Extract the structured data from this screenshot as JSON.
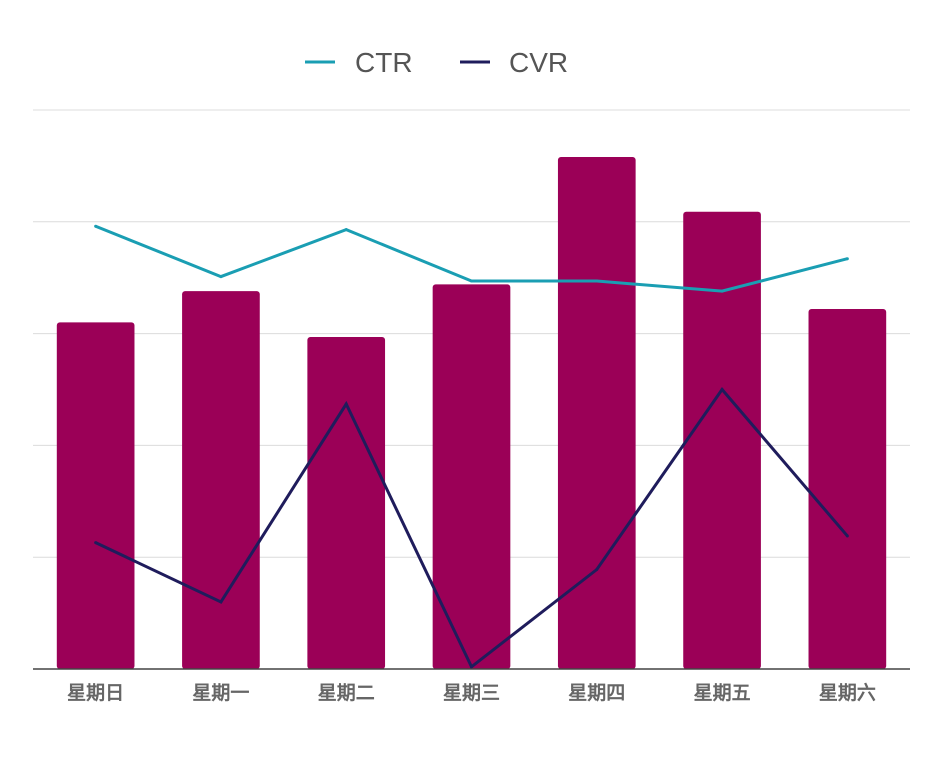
{
  "chart_data": {
    "type": "bar",
    "categories": [
      "星期日",
      "星期一",
      "星期二",
      "星期三",
      "星期四",
      "星期五",
      "星期六"
    ],
    "ylim": [
      0,
      5
    ],
    "grid": true,
    "legend_position": "top-center",
    "bar_color": "#9b0057",
    "bars": [
      3.1,
      3.38,
      2.97,
      3.44,
      4.58,
      4.09,
      3.22
    ],
    "series": [
      {
        "name": "CTR",
        "color": "#1a9eb3",
        "values": [
          3.96,
          3.51,
          3.93,
          3.47,
          3.47,
          3.38,
          3.67
        ]
      },
      {
        "name": "CVR",
        "color": "#1f1c5c",
        "values": [
          1.13,
          0.6,
          2.37,
          0.02,
          0.89,
          2.5,
          1.19
        ]
      }
    ]
  }
}
